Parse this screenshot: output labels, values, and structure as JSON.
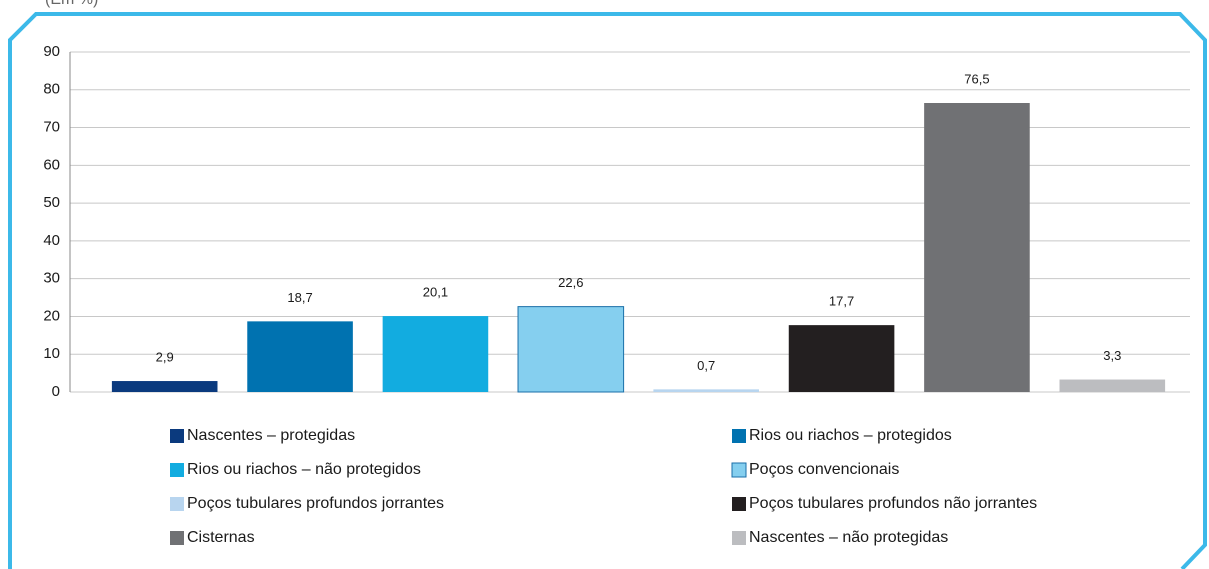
{
  "chart_data": {
    "type": "bar",
    "subtitle": "(Em %)",
    "categories": [
      "Nascentes – protegidas",
      "Rios ou riachos – protegidos",
      "Rios ou riachos – não protegidos",
      "Poços convencionais",
      "Poços tubulares profundos jorrantes",
      "Poços tubulares profundos não jorrantes",
      "Cisternas",
      "Nascentes – não protegidas"
    ],
    "values": [
      2.9,
      18.7,
      20.1,
      22.6,
      0.7,
      17.7,
      76.5,
      3.3
    ],
    "value_labels": [
      "2,9",
      "18,7",
      "20,1",
      "22,6",
      "0,7",
      "17,7",
      "76,5",
      "3,3"
    ],
    "colors": [
      "#0b3a7e",
      "#0072b0",
      "#12ace0",
      "#85cfef",
      "#b8d5ef",
      "#231f20",
      "#707174",
      "#bcbdc0"
    ],
    "ylim": [
      0,
      90
    ],
    "yticks": [
      0,
      10,
      20,
      30,
      40,
      50,
      60,
      70,
      80,
      90
    ],
    "grid": true
  }
}
